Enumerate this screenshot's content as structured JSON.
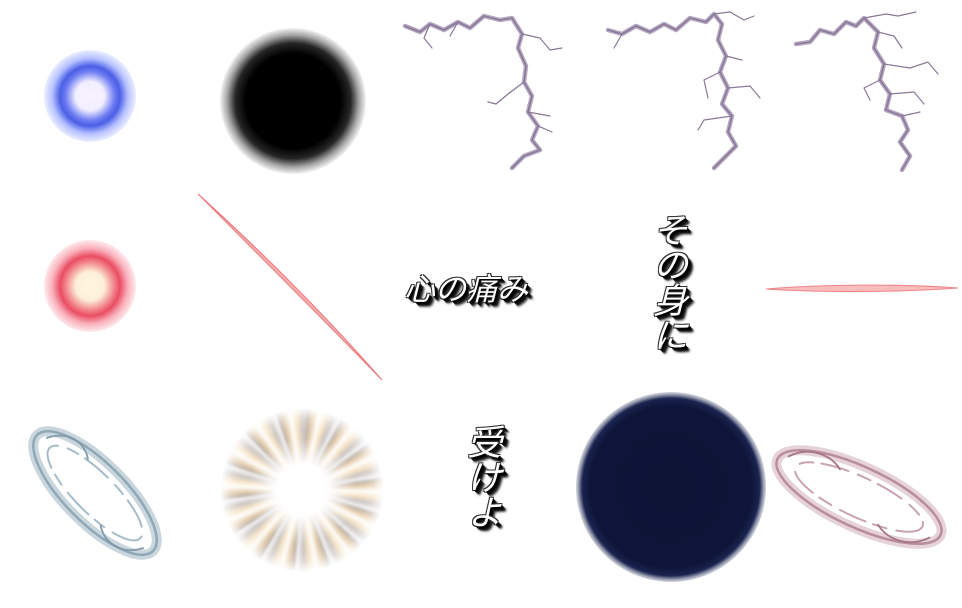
{
  "texts": {
    "caption_1": "心の痛み",
    "caption_2": "その身に",
    "caption_3": "受けよ"
  },
  "colors": {
    "background": "#ffffff",
    "orb_blue": "#4b5fe6",
    "orb_red": "#ea4d62",
    "orb_core_light": "#f6f2ff",
    "orb_black": "#000000",
    "orb_navy": "#0e1538",
    "lightning": "#9b86a6",
    "slash_red": "#f08a8a",
    "ring_blue": "#8fa8b6",
    "ring_pink": "#b98d9c",
    "burst_gold": "#d9a96f"
  },
  "icons": [
    "blue-glow-orb",
    "black-blur-orb",
    "lightning-bolt",
    "lightning-bolt",
    "lightning-bolt",
    "red-glow-orb",
    "red-slash-diagonal",
    "red-slash-horizontal",
    "blue-swirl-ring",
    "radial-burst",
    "navy-blur-orb",
    "pink-swirl-ring"
  ]
}
